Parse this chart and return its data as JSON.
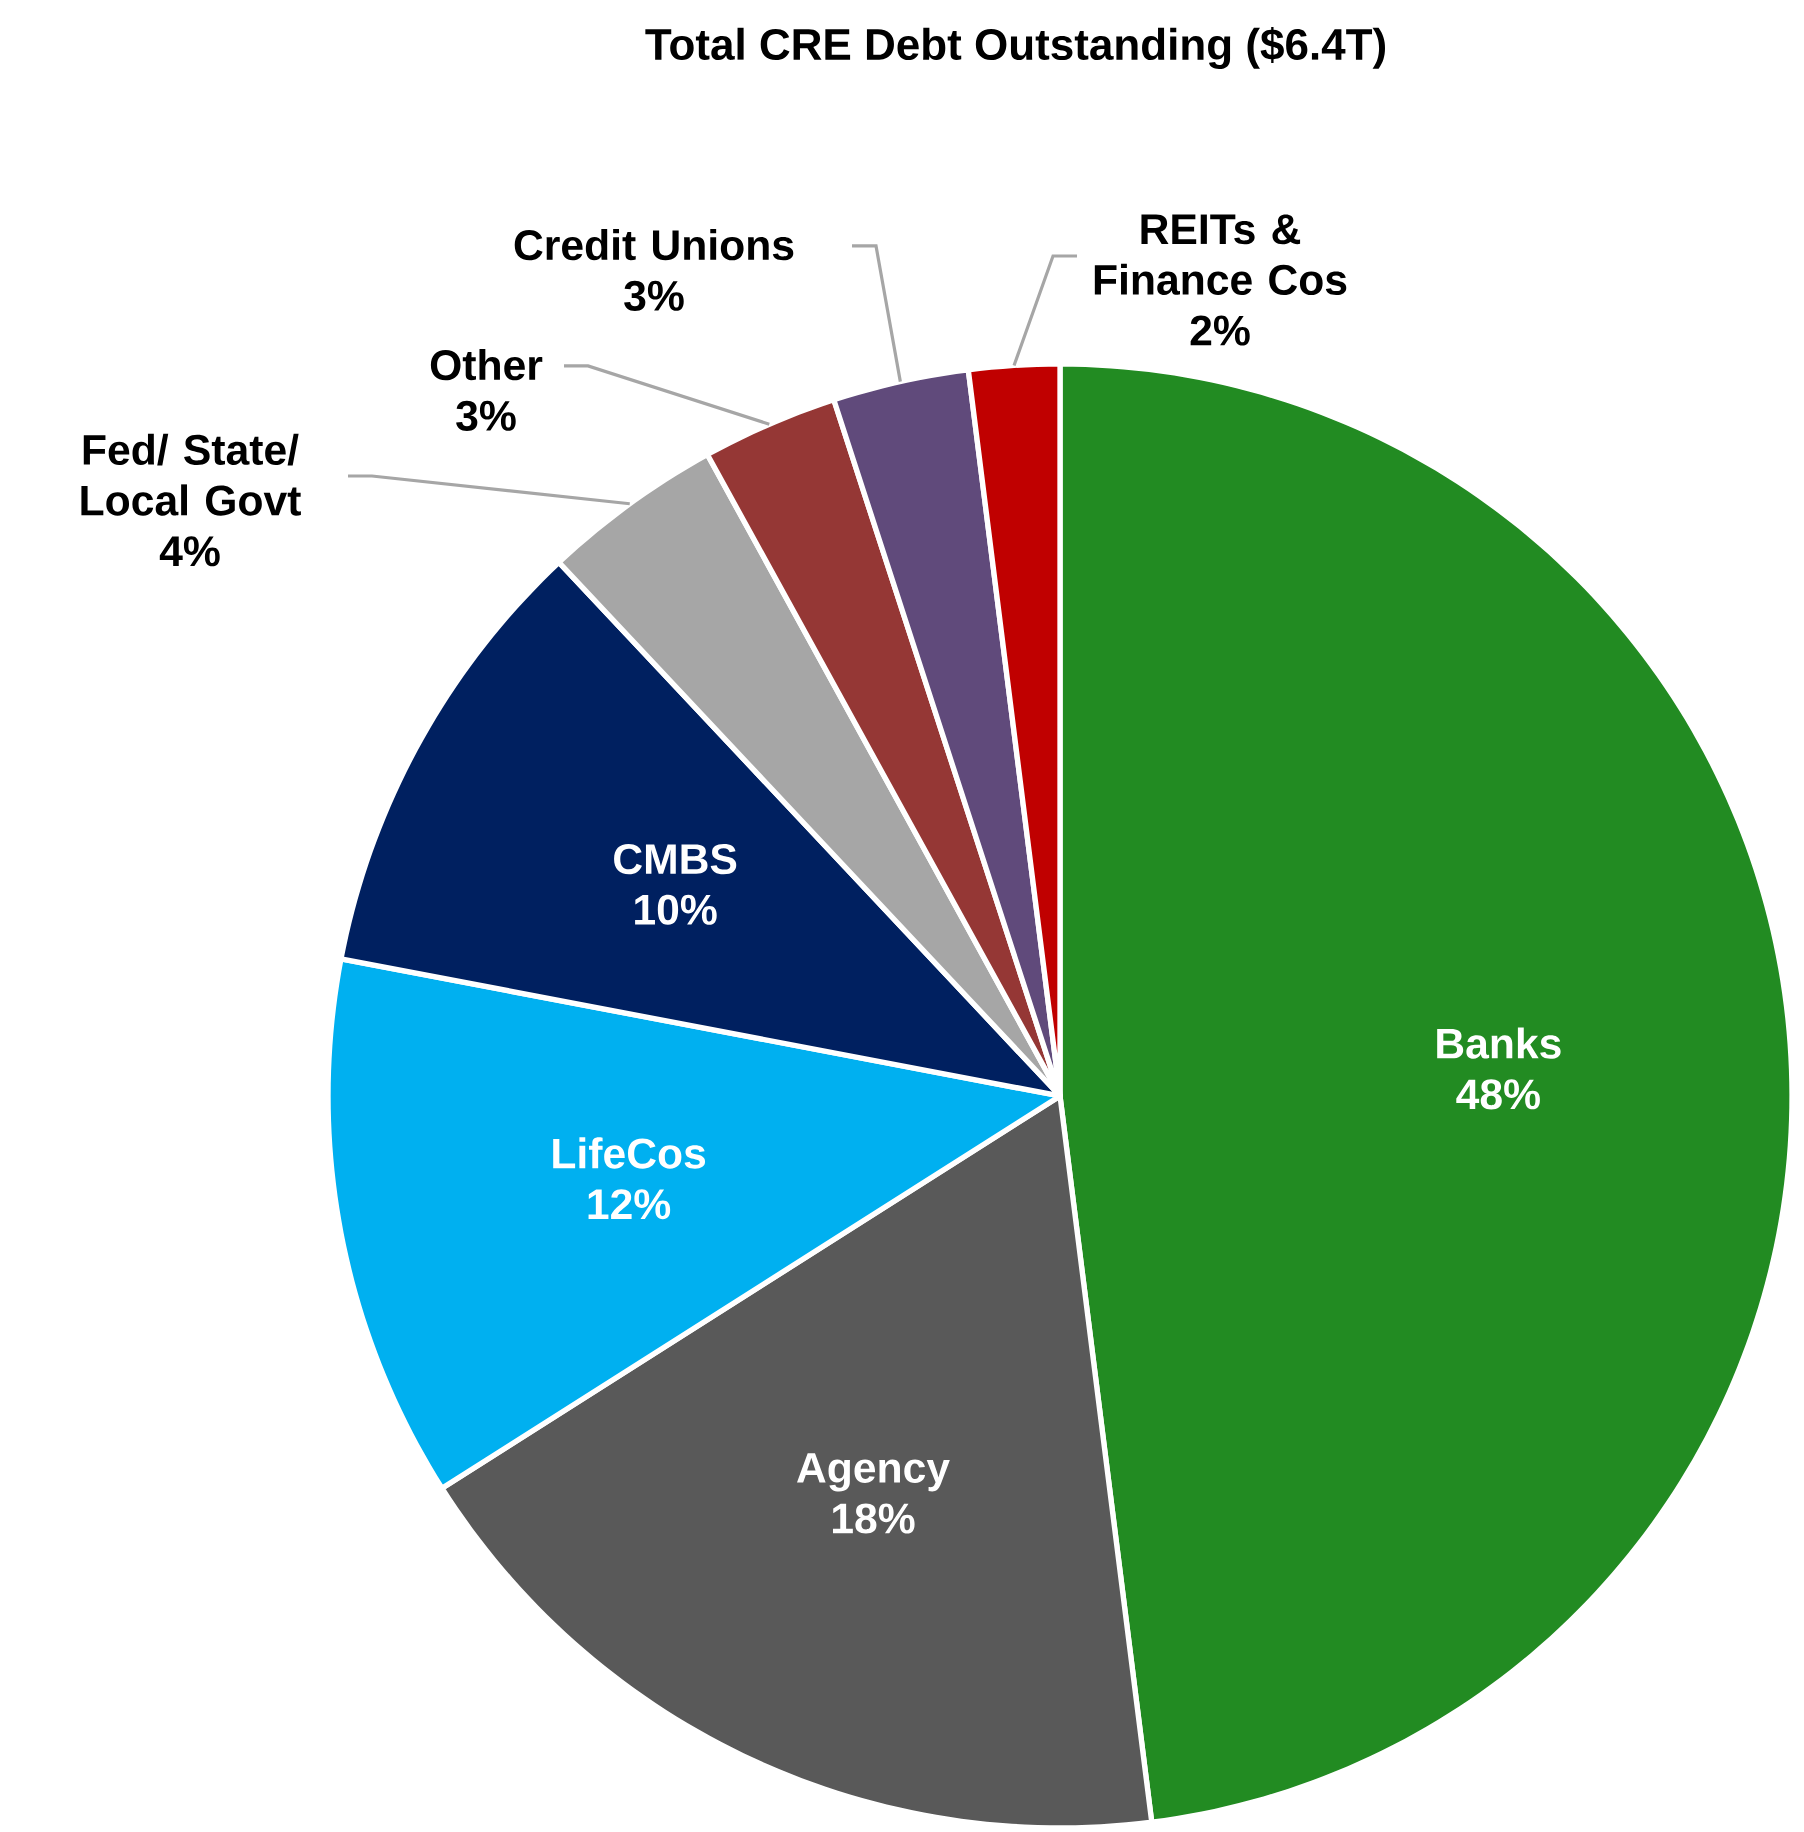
{
  "chart_data": {
    "type": "pie",
    "title": "Total CRE Debt Outstanding ($6.4T)",
    "categories": [
      "Banks",
      "Agency",
      "LifeCos",
      "CMBS",
      "Fed/ State/ Local Govt",
      "Other",
      "Credit Unions",
      "REITs & Finance Cos"
    ],
    "values": [
      48,
      18,
      12,
      10,
      4,
      3,
      3,
      2
    ],
    "value_labels": [
      "48%",
      "18%",
      "12%",
      "10%",
      "4%",
      "3%",
      "3%",
      "2%"
    ],
    "colors": [
      "#228b22",
      "#595959",
      "#00b0f0",
      "#002060",
      "#a6a6a6",
      "#953735",
      "#604a7b",
      "#c00000"
    ]
  }
}
